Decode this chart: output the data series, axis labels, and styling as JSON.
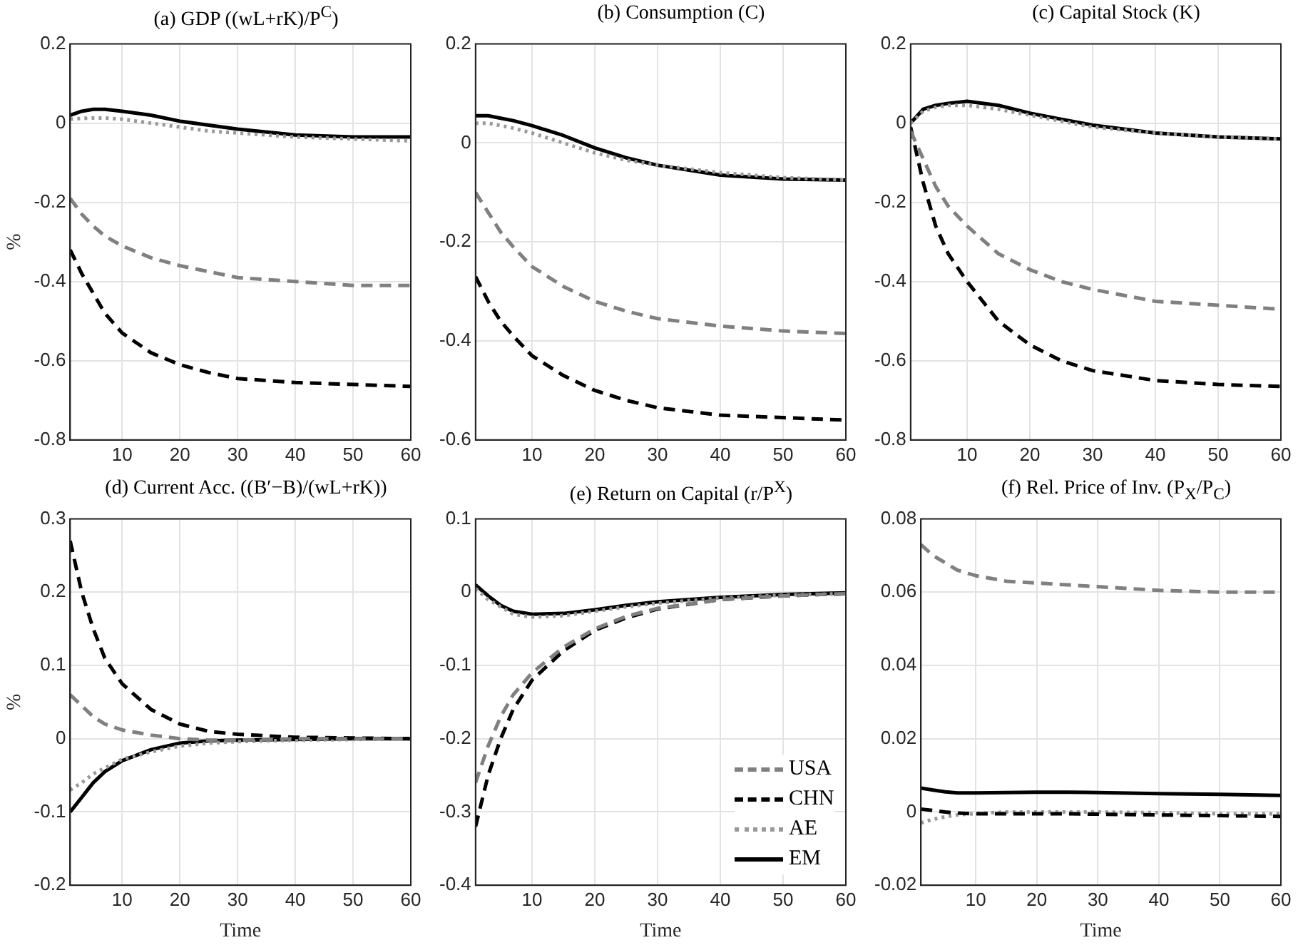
{
  "chart_data": [
    {
      "type": "line",
      "title": "(a) GDP ((wL+rK)/P$^{C}$)",
      "ylabel": "%",
      "xlim": [
        1,
        60
      ],
      "xticks": [
        10,
        20,
        30,
        40,
        50,
        60
      ],
      "ylim": [
        -0.8,
        0.2
      ],
      "yticks": [
        -0.8,
        -0.6,
        -0.4,
        -0.2,
        0,
        0.2
      ],
      "grid": true,
      "x": [
        1,
        3,
        5,
        7,
        10,
        15,
        20,
        25,
        30,
        40,
        50,
        60
      ],
      "series": [
        {
          "color": "#808080",
          "line_style": "dashed",
          "values": [
            -0.19,
            -0.23,
            -0.26,
            -0.285,
            -0.31,
            -0.34,
            -0.36,
            -0.375,
            -0.39,
            -0.4,
            -0.41,
            -0.41
          ]
        },
        {
          "color": "#000000",
          "line_style": "dashed",
          "values": [
            -0.32,
            -0.38,
            -0.43,
            -0.48,
            -0.53,
            -0.58,
            -0.61,
            -0.63,
            -0.645,
            -0.655,
            -0.66,
            -0.665
          ]
        },
        {
          "color": "#999999",
          "line_style": "dotted",
          "values": [
            0.01,
            0.012,
            0.013,
            0.013,
            0.01,
            0,
            -0.01,
            -0.02,
            -0.025,
            -0.035,
            -0.04,
            -0.045
          ]
        },
        {
          "color": "#000000",
          "line_style": "solid",
          "values": [
            0.02,
            0.03,
            0.035,
            0.035,
            0.03,
            0.02,
            0.005,
            -0.005,
            -0.015,
            -0.03,
            -0.035,
            -0.035
          ]
        }
      ]
    },
    {
      "type": "line",
      "title": "(b) Consumption (C)",
      "xlim": [
        1,
        60
      ],
      "xticks": [
        10,
        20,
        30,
        40,
        50,
        60
      ],
      "ylim": [
        -0.6,
        0.2
      ],
      "yticks": [
        -0.6,
        -0.4,
        -0.2,
        0,
        0.2
      ],
      "grid": true,
      "x": [
        1,
        3,
        5,
        7,
        10,
        15,
        20,
        25,
        30,
        40,
        50,
        60
      ],
      "series": [
        {
          "color": "#808080",
          "line_style": "dashed",
          "values": [
            -0.1,
            -0.14,
            -0.18,
            -0.21,
            -0.25,
            -0.29,
            -0.32,
            -0.34,
            -0.355,
            -0.37,
            -0.38,
            -0.385
          ]
        },
        {
          "color": "#000000",
          "line_style": "dashed",
          "values": [
            -0.27,
            -0.32,
            -0.36,
            -0.39,
            -0.43,
            -0.47,
            -0.5,
            -0.52,
            -0.535,
            -0.55,
            -0.555,
            -0.56
          ]
        },
        {
          "color": "#999999",
          "line_style": "dotted",
          "values": [
            0.04,
            0.04,
            0.035,
            0.03,
            0.02,
            0,
            -0.02,
            -0.035,
            -0.045,
            -0.06,
            -0.07,
            -0.075
          ]
        },
        {
          "color": "#000000",
          "line_style": "solid",
          "values": [
            0.055,
            0.055,
            0.05,
            0.045,
            0.035,
            0.015,
            -0.01,
            -0.03,
            -0.045,
            -0.065,
            -0.073,
            -0.075
          ]
        }
      ]
    },
    {
      "type": "line",
      "title": "(c) Capital Stock (K)",
      "xlim": [
        1,
        60
      ],
      "xticks": [
        10,
        20,
        30,
        40,
        50,
        60
      ],
      "ylim": [
        -0.8,
        0.2
      ],
      "yticks": [
        -0.8,
        -0.6,
        -0.4,
        -0.2,
        0,
        0.2
      ],
      "grid": true,
      "x": [
        1,
        3,
        5,
        7,
        10,
        15,
        20,
        25,
        30,
        40,
        50,
        60
      ],
      "series": [
        {
          "color": "#808080",
          "line_style": "dashed",
          "values": [
            -0.02,
            -0.09,
            -0.16,
            -0.21,
            -0.26,
            -0.33,
            -0.37,
            -0.4,
            -0.42,
            -0.45,
            -0.46,
            -0.47
          ]
        },
        {
          "color": "#000000",
          "line_style": "dashed",
          "values": [
            -0.01,
            -0.15,
            -0.26,
            -0.33,
            -0.4,
            -0.5,
            -0.56,
            -0.6,
            -0.625,
            -0.65,
            -0.66,
            -0.665
          ]
        },
        {
          "color": "#999999",
          "line_style": "dotted",
          "values": [
            0,
            0.03,
            0.04,
            0.045,
            0.045,
            0.035,
            0.02,
            0.005,
            -0.01,
            -0.025,
            -0.035,
            -0.04
          ]
        },
        {
          "color": "#000000",
          "line_style": "solid",
          "values": [
            0,
            0.035,
            0.045,
            0.05,
            0.055,
            0.045,
            0.025,
            0.01,
            -0.005,
            -0.025,
            -0.035,
            -0.04
          ]
        }
      ]
    },
    {
      "type": "line",
      "title": "(d) Current Acc. ((B′−B)/(wL+rK))",
      "xlabel": "Time",
      "ylabel": "%",
      "xlim": [
        1,
        60
      ],
      "xticks": [
        10,
        20,
        30,
        40,
        50,
        60
      ],
      "ylim": [
        -0.2,
        0.3
      ],
      "yticks": [
        -0.2,
        -0.1,
        0,
        0.1,
        0.2,
        0.3
      ],
      "grid": true,
      "x": [
        1,
        3,
        5,
        7,
        10,
        15,
        20,
        25,
        30,
        40,
        50,
        60
      ],
      "series": [
        {
          "color": "#808080",
          "line_style": "dashed",
          "values": [
            0.06,
            0.045,
            0.03,
            0.02,
            0.012,
            0.005,
            0,
            -0.002,
            -0.002,
            0,
            0,
            0
          ]
        },
        {
          "color": "#000000",
          "line_style": "dashed",
          "values": [
            0.27,
            0.2,
            0.15,
            0.11,
            0.075,
            0.04,
            0.02,
            0.01,
            0.006,
            0.002,
            0.001,
            0
          ]
        },
        {
          "color": "#999999",
          "line_style": "dotted",
          "values": [
            -0.07,
            -0.06,
            -0.048,
            -0.04,
            -0.028,
            -0.018,
            -0.01,
            -0.006,
            -0.004,
            -0.002,
            -0.001,
            0
          ]
        },
        {
          "color": "#000000",
          "line_style": "solid",
          "values": [
            -0.1,
            -0.08,
            -0.06,
            -0.045,
            -0.03,
            -0.015,
            -0.006,
            -0.003,
            -0.002,
            -0.001,
            0,
            0
          ]
        }
      ]
    },
    {
      "type": "line",
      "title": "(e) Return on Capital (r/P$^{X}$)",
      "xlabel": "Time",
      "xlim": [
        1,
        60
      ],
      "xticks": [
        10,
        20,
        30,
        40,
        50,
        60
      ],
      "ylim": [
        -0.4,
        0.1
      ],
      "yticks": [
        -0.4,
        -0.3,
        -0.2,
        -0.1,
        0,
        0.1
      ],
      "grid": true,
      "legend": "bottom right",
      "x": [
        1,
        3,
        5,
        7,
        10,
        15,
        20,
        25,
        30,
        40,
        50,
        60
      ],
      "series": [
        {
          "name": "USA",
          "color": "#808080",
          "line_style": "dashed",
          "values": [
            -0.26,
            -0.21,
            -0.17,
            -0.14,
            -0.11,
            -0.075,
            -0.05,
            -0.033,
            -0.022,
            -0.01,
            -0.005,
            -0.002
          ]
        },
        {
          "name": "CHN",
          "color": "#000000",
          "line_style": "dashed",
          "values": [
            -0.32,
            -0.25,
            -0.2,
            -0.16,
            -0.12,
            -0.08,
            -0.052,
            -0.035,
            -0.023,
            -0.01,
            -0.005,
            -0.002
          ]
        },
        {
          "name": "AE",
          "color": "#999999",
          "line_style": "dotted",
          "values": [
            0.005,
            -0.01,
            -0.02,
            -0.03,
            -0.034,
            -0.032,
            -0.026,
            -0.02,
            -0.015,
            -0.008,
            -0.004,
            -0.002
          ]
        },
        {
          "name": "EM",
          "color": "#000000",
          "line_style": "solid",
          "values": [
            0.01,
            -0.005,
            -0.018,
            -0.026,
            -0.03,
            -0.029,
            -0.024,
            -0.018,
            -0.013,
            -0.007,
            -0.003,
            -0.001
          ]
        }
      ]
    },
    {
      "type": "line",
      "title": "(f) Rel. Price of Inv. (P$_{X}$/P$_{C}$)",
      "xlabel": "Time",
      "xlim": [
        1,
        60
      ],
      "xticks": [
        10,
        20,
        30,
        40,
        50,
        60
      ],
      "ylim": [
        -0.02,
        0.08
      ],
      "yticks": [
        -0.02,
        0,
        0.02,
        0.04,
        0.06,
        0.08
      ],
      "grid": true,
      "x": [
        1,
        3,
        5,
        7,
        10,
        15,
        20,
        25,
        30,
        40,
        50,
        60
      ],
      "series": [
        {
          "color": "#808080",
          "line_style": "dashed",
          "values": [
            0.073,
            0.07,
            0.068,
            0.066,
            0.0645,
            0.063,
            0.0625,
            0.062,
            0.0615,
            0.0605,
            0.06,
            0.06
          ]
        },
        {
          "color": "#000000",
          "line_style": "dashed",
          "values": [
            0.0008,
            0.0004,
            0,
            -0.0003,
            -0.0005,
            -0.0005,
            -0.0005,
            -0.0005,
            -0.0006,
            -0.0008,
            -0.001,
            -0.0012
          ]
        },
        {
          "color": "#999999",
          "line_style": "dotted",
          "values": [
            -0.003,
            -0.002,
            -0.0013,
            -0.0008,
            -0.0004,
            0,
            0,
            0,
            0,
            -0.0002,
            -0.0005,
            -0.0005
          ]
        },
        {
          "color": "#000000",
          "line_style": "solid",
          "values": [
            0.0065,
            0.006,
            0.0055,
            0.0052,
            0.0052,
            0.0053,
            0.0054,
            0.0054,
            0.0053,
            0.005,
            0.0048,
            0.0045
          ]
        }
      ]
    }
  ]
}
